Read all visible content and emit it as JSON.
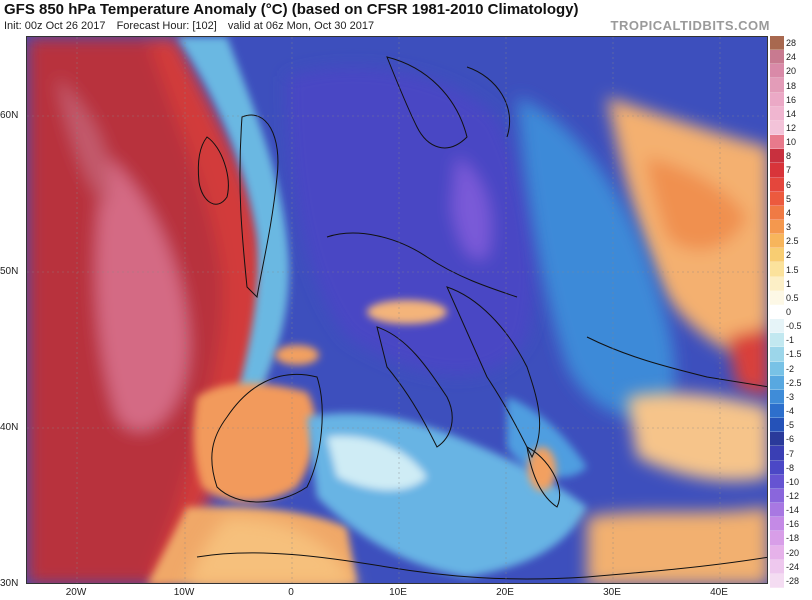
{
  "header": {
    "title": "GFS 850 hPa Temperature Anomaly (°C) (based on CFSR 1981-2010 Climatology)",
    "init": "Init: 00z Oct 26 2017",
    "forecast_hour": "Forecast Hour: [102]",
    "valid": "valid at 06z Mon, Oct 30 2017",
    "brand": "TROPICALTIDBITS.COM"
  },
  "map": {
    "lat_labels": [
      "60N",
      "50N",
      "40N",
      "30N"
    ],
    "lon_labels": [
      "20W",
      "10W",
      "0",
      "10E",
      "20E",
      "30E",
      "40E"
    ]
  },
  "colorbar": {
    "levels": [
      "28",
      "24",
      "20",
      "18",
      "16",
      "14",
      "12",
      "10",
      "8",
      "7",
      "6",
      "5",
      "4",
      "3",
      "2.5",
      "2",
      "1.5",
      "1",
      "0.5",
      "0",
      "-0.5",
      "-1",
      "-1.5",
      "-2",
      "-2.5",
      "-3",
      "-4",
      "-5",
      "-6",
      "-7",
      "-8",
      "-10",
      "-12",
      "-14",
      "-16",
      "-18",
      "-20",
      "-24",
      "-28"
    ],
    "colors": [
      "#a8684f",
      "#c87a90",
      "#d98aa8",
      "#e39cb8",
      "#eba9c6",
      "#f0b6d0",
      "#f3c3d9",
      "#e87a8c",
      "#c8303e",
      "#d8343a",
      "#e4463c",
      "#ec5a3e",
      "#f07a44",
      "#f4984e",
      "#f7b55c",
      "#f8cd72",
      "#fbe29c",
      "#fcefc6",
      "#fdf8e6",
      "#ffffff",
      "#e6f4f8",
      "#c2e8f0",
      "#9cd6ea",
      "#78c2e6",
      "#58a8e0",
      "#3f8cd8",
      "#2d6fcc",
      "#2552b8",
      "#2a3a9a",
      "#3a3fb4",
      "#4b48c6",
      "#6654d2",
      "#8a66dc",
      "#a878e2",
      "#c48ae6",
      "#d89ee8",
      "#e6b2ea",
      "#eec8ee",
      "#f4dcf2"
    ]
  }
}
